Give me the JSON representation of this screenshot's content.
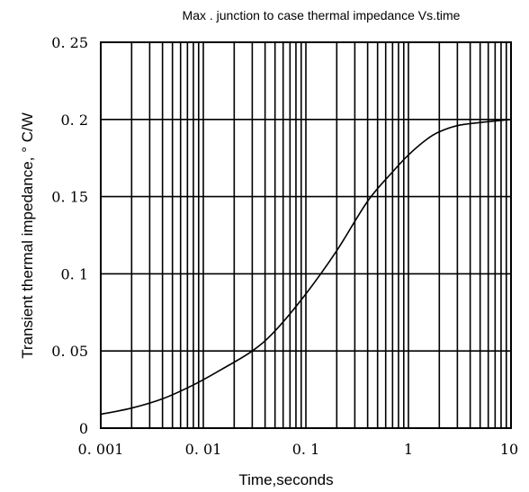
{
  "chart_data": {
    "type": "line",
    "title": "Max . junction to case thermal impedance Vs.time",
    "xlabel": "Time,seconds",
    "ylabel": "Transient thermal impedance, °  C/W",
    "x_scale": "log",
    "xlim": [
      0.001,
      10
    ],
    "ylim": [
      0,
      0.25
    ],
    "x_tick_labels": [
      "0. 001",
      "0. 01",
      "0. 1",
      "1",
      "10"
    ],
    "x_tick_values": [
      0.001,
      0.01,
      0.1,
      1,
      10
    ],
    "y_tick_labels": [
      "0",
      "0. 05",
      "0. 1",
      "0. 15",
      "0. 2",
      "0. 25"
    ],
    "y_tick_values": [
      0,
      0.05,
      0.1,
      0.15,
      0.2,
      0.25
    ],
    "grid": true,
    "series": [
      {
        "x": [
          0.001,
          0.002,
          0.004,
          0.008,
          0.015,
          0.03,
          0.05,
          0.1,
          0.2,
          0.4,
          0.7,
          1,
          1.5,
          2,
          3,
          5,
          10
        ],
        "y": [
          0.009,
          0.013,
          0.019,
          0.028,
          0.038,
          0.05,
          0.063,
          0.087,
          0.115,
          0.147,
          0.166,
          0.177,
          0.187,
          0.192,
          0.196,
          0.198,
          0.2
        ]
      }
    ]
  }
}
